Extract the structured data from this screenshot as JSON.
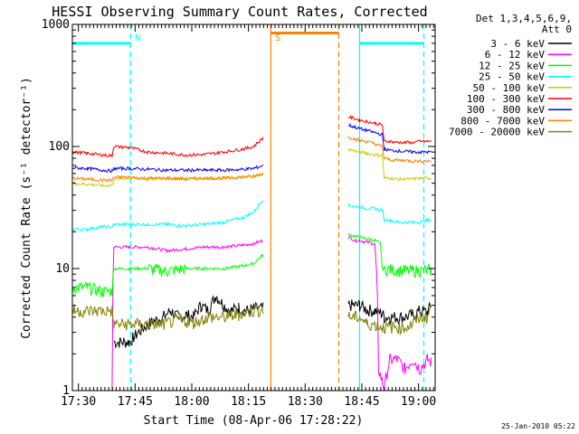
{
  "chart_data": {
    "type": "line",
    "title": "HESSI Observing Summary Count Rates, Corrected",
    "xlabel": "Start Time (08-Apr-06 17:28:22)",
    "ylabel": "Corrected Count Rate (s⁻¹ detector⁻¹)",
    "x_unit": "minutes after 17:28:22 UT",
    "xlim": [
      0,
      96
    ],
    "ylim": [
      1,
      1000
    ],
    "yscale": "log",
    "x_ticks": [
      {
        "t": 1.6,
        "label": "17:30"
      },
      {
        "t": 16.6,
        "label": "17:45"
      },
      {
        "t": 31.6,
        "label": "18:00"
      },
      {
        "t": 46.6,
        "label": "18:15"
      },
      {
        "t": 61.6,
        "label": "18:30"
      },
      {
        "t": 76.6,
        "label": "18:45"
      },
      {
        "t": 91.6,
        "label": "19:00"
      }
    ],
    "y_ticks": [
      {
        "v": 1,
        "label": "1"
      },
      {
        "v": 10,
        "label": "10"
      },
      {
        "v": 100,
        "label": "100"
      },
      {
        "v": 1000,
        "label": "1000"
      }
    ],
    "legend": {
      "header": [
        "Det 1,3,4,5,6,9,",
        "Att 0"
      ],
      "placement": "right"
    },
    "series": [
      {
        "name": "3 - 6 keV",
        "color": "#000000",
        "x": [
          0,
          8,
          10.5,
          11,
          15,
          16,
          20,
          24,
          26,
          28,
          30,
          32,
          34,
          36,
          38,
          40,
          42,
          44,
          46,
          48,
          50.5,
          72,
          73,
          76,
          78,
          80,
          82,
          82.5,
          84,
          86,
          88,
          90,
          92,
          94,
          95
        ],
        "y": [
          null,
          null,
          null,
          2.5,
          2.5,
          2.7,
          3.5,
          4,
          4.5,
          4,
          4.2,
          4,
          5,
          4.5,
          6,
          5,
          4.5,
          4.8,
          4.5,
          4.7,
          4.7,
          null,
          5,
          5,
          4.6,
          4.5,
          4.3,
          4,
          4,
          4,
          4,
          4.2,
          4.5,
          4.4,
          5
        ]
      },
      {
        "name": "6 - 12 keV",
        "color": "#ff00ff",
        "x": [
          0,
          8,
          10.5,
          11,
          15,
          20,
          25,
          30,
          35,
          40,
          45,
          48,
          50.5,
          72,
          73,
          75,
          76,
          78,
          80,
          81,
          82,
          82.5,
          84,
          86,
          88,
          90,
          92,
          94,
          95
        ],
        "y": [
          null,
          null,
          1,
          15,
          15,
          15,
          14,
          14.5,
          15,
          15,
          15.5,
          16,
          17,
          null,
          18,
          17,
          17,
          16.5,
          16,
          1.5,
          1.2,
          1,
          1.8,
          1.8,
          1.5,
          1.8,
          1.5,
          1.8,
          1.7
        ]
      },
      {
        "name": "12 - 25 keV",
        "color": "#00ff00",
        "x": [
          0,
          4,
          8,
          10.5,
          11,
          15,
          20,
          25,
          30,
          35,
          40,
          45,
          48,
          50.5,
          72,
          73,
          76,
          78,
          80,
          81.5,
          82,
          82.5,
          84,
          86,
          88,
          90,
          92,
          94,
          95
        ],
        "y": [
          7,
          7,
          6.5,
          6.5,
          10,
          10,
          10,
          9.5,
          10,
          10,
          10,
          10.5,
          11,
          13,
          null,
          19,
          18,
          17.5,
          17,
          16,
          10,
          10,
          9.8,
          9.7,
          9.6,
          9.6,
          9.6,
          9.7,
          9.7
        ]
      },
      {
        "name": "25 - 50 keV",
        "color": "#00ffff",
        "x": [
          0,
          4,
          8,
          10.5,
          11,
          15,
          20,
          25,
          30,
          35,
          40,
          45,
          48,
          50.5,
          72,
          73,
          76,
          78,
          80,
          82,
          82.5,
          84,
          86,
          88,
          90,
          92,
          94,
          95
        ],
        "y": [
          21,
          21,
          22,
          22,
          23,
          23,
          23,
          23,
          22.5,
          23,
          24,
          26,
          29,
          37,
          null,
          33,
          32,
          31,
          31,
          30,
          25,
          25,
          24,
          24,
          24,
          24,
          25,
          25
        ]
      },
      {
        "name": "50 - 100 keV",
        "color": "#cccc00",
        "x": [
          0,
          4,
          8,
          10.5,
          11,
          15,
          20,
          25,
          30,
          35,
          40,
          45,
          48,
          50.5,
          72,
          73,
          76,
          78,
          80,
          82,
          82.5,
          84,
          86,
          88,
          90,
          92,
          94,
          95
        ],
        "y": [
          50,
          49,
          48,
          48,
          54,
          55,
          54,
          55,
          55,
          55,
          55,
          56,
          57,
          60,
          null,
          95,
          90,
          88,
          85,
          85,
          55,
          55,
          54,
          54,
          54,
          55,
          55,
          55
        ]
      },
      {
        "name": "100 - 300 keV",
        "color": "#ff0000",
        "x": [
          0,
          4,
          8,
          10.5,
          11,
          15,
          20,
          25,
          30,
          35,
          40,
          45,
          48,
          50.5,
          72,
          73,
          76,
          78,
          80,
          82,
          82.5,
          84,
          86,
          88,
          90,
          92,
          94,
          95
        ],
        "y": [
          90,
          88,
          85,
          84,
          100,
          98,
          90,
          88,
          85,
          86,
          90,
          95,
          100,
          118,
          null,
          175,
          165,
          160,
          155,
          150,
          110,
          110,
          108,
          108,
          108,
          110,
          110,
          110
        ]
      },
      {
        "name": "300 - 800 keV",
        "color": "#0000ff",
        "x": [
          0,
          4,
          8,
          10.5,
          11,
          15,
          20,
          25,
          30,
          35,
          40,
          45,
          48,
          50.5,
          72,
          73,
          76,
          78,
          80,
          82,
          82.5,
          84,
          86,
          88,
          90,
          92,
          94,
          95
        ],
        "y": [
          67,
          66,
          64,
          63,
          66,
          66,
          65,
          64,
          64,
          64,
          64,
          65,
          66,
          70,
          null,
          150,
          140,
          135,
          130,
          125,
          95,
          93,
          92,
          91,
          90,
          90,
          90,
          90
        ]
      },
      {
        "name": "800 - 7000 keV",
        "color": "#ff8000",
        "x": [
          0,
          4,
          8,
          10.5,
          11,
          15,
          20,
          25,
          30,
          35,
          40,
          45,
          48,
          50.5,
          72,
          73,
          76,
          78,
          80,
          82,
          82.5,
          84,
          86,
          88,
          90,
          92,
          94,
          95
        ],
        "y": [
          55,
          54,
          53,
          53,
          56,
          56,
          55,
          55,
          54,
          55,
          55,
          56,
          57,
          60,
          null,
          120,
          112,
          110,
          105,
          100,
          80,
          78,
          77,
          77,
          76,
          76,
          76,
          76
        ]
      },
      {
        "name": "7000 - 20000 keV",
        "color": "#808000",
        "x": [
          0,
          4,
          8,
          10.5,
          11,
          15,
          20,
          24,
          28,
          32,
          36,
          40,
          44,
          48,
          50.5,
          72,
          73,
          76,
          78,
          80,
          82,
          82.5,
          84,
          86,
          88,
          90,
          92,
          94,
          95
        ],
        "y": [
          4.5,
          4.5,
          4.5,
          4.5,
          3.5,
          3.5,
          3.5,
          3.5,
          3.8,
          3.6,
          4,
          4,
          4.2,
          4.5,
          4.6,
          null,
          4,
          4,
          3.5,
          3.5,
          3.3,
          3.3,
          3.3,
          3.3,
          3.3,
          3.5,
          4,
          4,
          5
        ]
      }
    ],
    "annotations": [
      {
        "label": "N",
        "color": "#00ffff",
        "marker_x": 15.4,
        "bar_x": [
          0,
          15.4
        ],
        "bar_x2": [
          76,
          93
        ],
        "bar_y": 700,
        "vlines": [
          {
            "t": 15.4,
            "dash": true
          },
          {
            "t": 76,
            "dash": false
          },
          {
            "t": 93,
            "dash": true
          }
        ]
      },
      {
        "label": "S",
        "color": "#ff8000",
        "marker_x": 52.5,
        "bar_x": [
          52.5,
          70.5
        ],
        "bar_y": 850,
        "vlines": [
          {
            "t": 52.5,
            "dash": false
          },
          {
            "t": 70.5,
            "dash": true
          }
        ]
      }
    ],
    "grid": false
  },
  "footer": {
    "timestamp": "25-Jan-2010 05:22"
  }
}
